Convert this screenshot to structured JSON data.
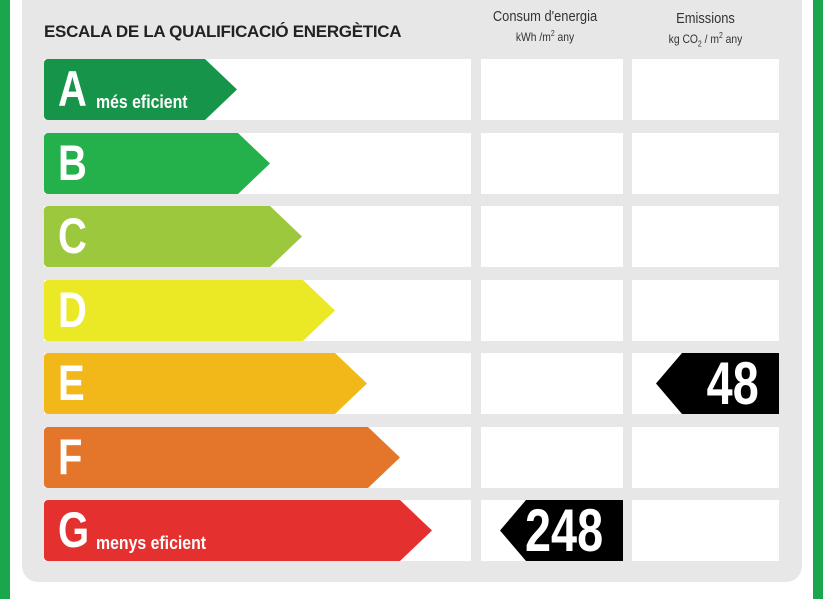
{
  "header": {
    "title": "ESCALA DE LA QUALIFICACIÓ ENERGÈTICA",
    "consumption_title": "Consum d'energia",
    "consumption_unit_pre": "kWh /m",
    "consumption_unit_exp": "2",
    "consumption_unit_post": " any",
    "emissions_title": "Emissions",
    "emissions_unit_pre": "kg CO",
    "emissions_unit_sub": "2",
    "emissions_unit_mid": "  / m",
    "emissions_unit_exp": "2",
    "emissions_unit_post": " any"
  },
  "classes": [
    {
      "letter": "A",
      "desc": "més eficient",
      "color": "#16944a"
    },
    {
      "letter": "B",
      "desc": "",
      "color": "#24b04b"
    },
    {
      "letter": "C",
      "desc": "",
      "color": "#9cc83d"
    },
    {
      "letter": "D",
      "desc": "",
      "color": "#ebe826"
    },
    {
      "letter": "E",
      "desc": "",
      "color": "#f2b81a"
    },
    {
      "letter": "F",
      "desc": "",
      "color": "#e3762a"
    },
    {
      "letter": "G",
      "desc": "menys eficient",
      "color": "#e4312f"
    }
  ],
  "rating": {
    "consumption_value": "248",
    "consumption_class": "G",
    "emissions_value": "48",
    "emissions_class": "E"
  }
}
